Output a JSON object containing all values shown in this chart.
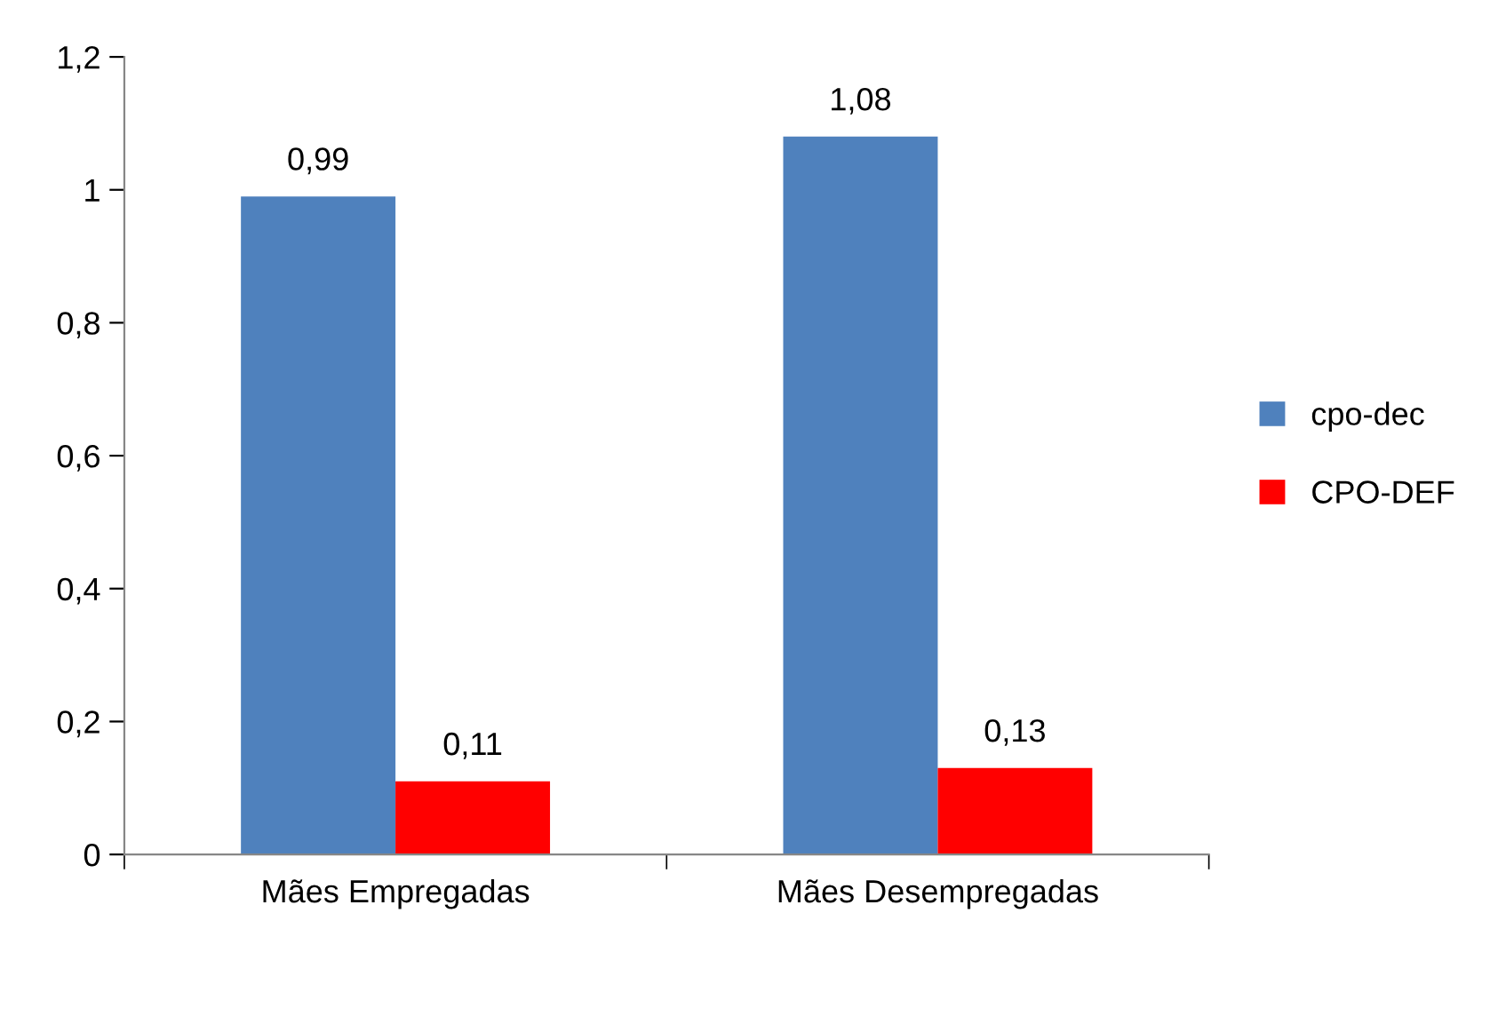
{
  "chart_data": {
    "type": "bar",
    "categories": [
      "Mães Empregadas",
      "Mães Desempregadas"
    ],
    "series": [
      {
        "name": "cpo-dec",
        "color": "#4f81bd",
        "values": [
          0.99,
          1.08
        ],
        "value_labels": [
          "0,99",
          "1,08"
        ]
      },
      {
        "name": "CPO-DEF",
        "color": "#ff0000",
        "values": [
          0.11,
          0.13
        ],
        "value_labels": [
          "0,11",
          "0,13"
        ]
      }
    ],
    "ylim": [
      0,
      1.2
    ],
    "yticks": [
      0,
      {
        "value": 0.2,
        "label": "0,2"
      },
      {
        "value": 0.4,
        "label": "0,4"
      },
      {
        "value": 0.6,
        "label": "0,6"
      },
      {
        "value": 0.8,
        "label": "0,8"
      },
      1,
      {
        "value": 1.2,
        "label": "1,2"
      }
    ],
    "grid": false,
    "legend": "right"
  }
}
